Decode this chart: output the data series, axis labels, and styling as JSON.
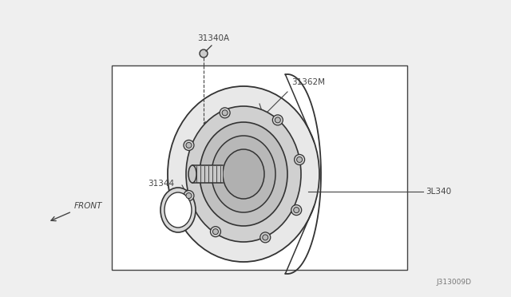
{
  "bg_color": "#efefef",
  "box_color": "#ffffff",
  "line_color": "#444444",
  "watermark": "J313009D",
  "label_31340A": "31340A",
  "label_31362M": "31362M",
  "label_31344": "31344",
  "label_31340": "3L340",
  "label_front": "FRONT",
  "part_edge": "#333333",
  "part_fill_outer": "#e8e8e8",
  "part_fill_mid": "#d0d0d0",
  "part_fill_inner": "#c0c0c0",
  "part_fill_hub": "#b0b0b0",
  "part_fill_shaft": "#c8c8c8"
}
